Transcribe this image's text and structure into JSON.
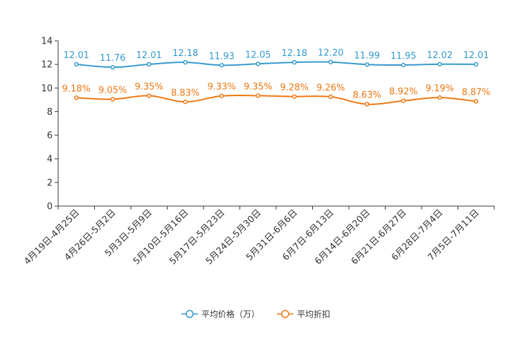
{
  "chart_data": {
    "type": "line",
    "categories": [
      "4月19日-4月25日",
      "4月26日-5月2日",
      "5月3日-5月9日",
      "5月10日-5月16日",
      "5月17日-5月23日",
      "5月24日-5月30日",
      "5月31日-6月6日",
      "6月7日-6月13日",
      "6月14日-6月20日",
      "6月21日-6月27日",
      "6月28日-7月4日",
      "7月5日-7月11日"
    ],
    "ylim": [
      0,
      14
    ],
    "yticks": [
      0,
      2,
      4,
      6,
      8,
      10,
      12,
      14
    ],
    "grid": false,
    "legend_position": "bottom-center",
    "series": [
      {
        "name": "平均价格（万）",
        "color": "#3399cc",
        "values": [
          12.01,
          11.76,
          12.01,
          12.18,
          11.93,
          12.05,
          12.18,
          12.2,
          11.99,
          11.95,
          12.02,
          12.01
        ],
        "labels": [
          "12.01",
          "11.76",
          "12.01",
          "12.18",
          "11.93",
          "12.05",
          "12.18",
          "12.20",
          "11.99",
          "11.95",
          "12.02",
          "12.01"
        ]
      },
      {
        "name": "平均折扣",
        "color": "#ee7711",
        "values": [
          9.18,
          9.05,
          9.35,
          8.83,
          9.33,
          9.35,
          9.28,
          9.26,
          8.63,
          8.92,
          9.19,
          8.87
        ],
        "labels": [
          "9.18%",
          "9.05%",
          "9.35%",
          "8.83%",
          "9.33%",
          "9.35%",
          "9.28%",
          "9.26%",
          "8.63%",
          "8.92%",
          "9.19%",
          "8.87%"
        ]
      }
    ]
  }
}
